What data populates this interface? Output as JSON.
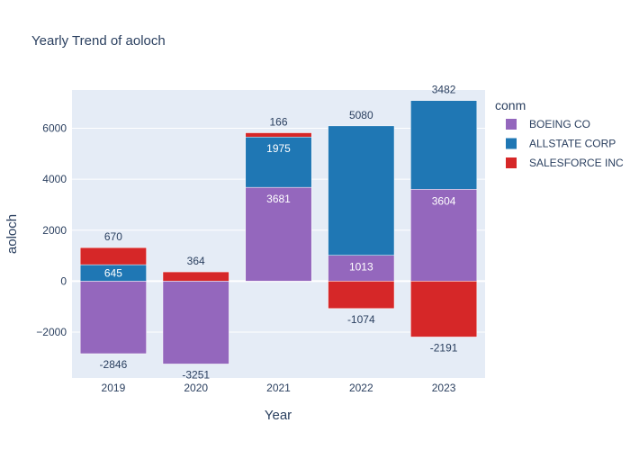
{
  "chart_data": {
    "type": "bar",
    "barmode": "relative",
    "title": "Yearly Trend of aoloch",
    "xlabel": "Year",
    "ylabel": "aoloch",
    "categories": [
      "2019",
      "2020",
      "2021",
      "2022",
      "2023"
    ],
    "ylim": [
      -3800,
      7500
    ],
    "yticks": [
      -2000,
      0,
      2000,
      4000,
      6000
    ],
    "ytick_labels": [
      "−2000",
      "0",
      "2000",
      "4000",
      "6000"
    ],
    "legend_title": "conm",
    "legend_position": "top-right",
    "grid": true,
    "series": [
      {
        "name": "BOEING CO",
        "color": "#9467bd",
        "values": [
          -2846,
          -3251,
          3681,
          1013,
          3604
        ],
        "labels": [
          "-2846",
          "-3251",
          "3681",
          "1013",
          "3604"
        ]
      },
      {
        "name": "ALLSTATE CORP",
        "color": "#1f77b4",
        "values": [
          645,
          null,
          1975,
          5080,
          3482
        ],
        "labels": [
          "645",
          "",
          "1975",
          "5080",
          "3482"
        ]
      },
      {
        "name": "SALESFORCE INC",
        "color": "#d62728",
        "values": [
          670,
          364,
          166,
          -1074,
          -2191
        ],
        "labels": [
          "670",
          "364",
          "166",
          "-1074",
          "-2191"
        ]
      }
    ]
  }
}
